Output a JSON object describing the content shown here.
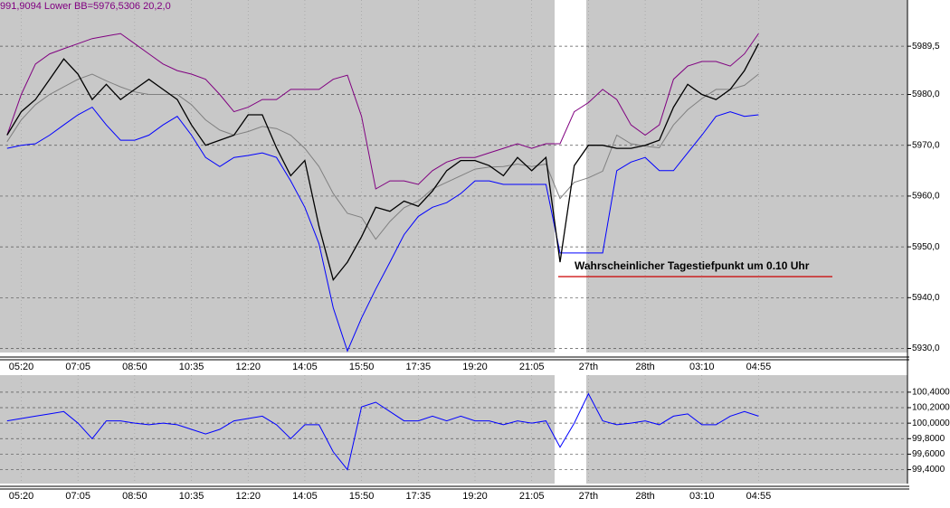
{
  "chart_data": [
    {
      "type": "line",
      "title": "991,9094 Lower BB=5976,5306 20,2,0",
      "annotation": "Wahrscheinlicher Tagestiefpunkt um 0.10 Uhr",
      "categories": [
        null,
        "05:20",
        null,
        null,
        null,
        "07:05",
        null,
        null,
        null,
        "08:50",
        null,
        null,
        null,
        "10:35",
        null,
        null,
        null,
        "12:20",
        null,
        null,
        null,
        "14:05",
        null,
        null,
        null,
        "15:50",
        null,
        null,
        null,
        "17:35",
        null,
        null,
        null,
        "19:20",
        null,
        null,
        null,
        "21:05",
        null,
        null,
        null,
        "27th",
        null,
        null,
        null,
        "28th",
        null,
        null,
        null,
        "03:10",
        null,
        null,
        null,
        "04:55",
        null,
        null,
        null,
        null,
        null,
        null,
        null,
        null,
        null,
        null
      ],
      "ylim": [
        5929.2,
        5998.6
      ],
      "yticks": [
        {
          "value": 5930,
          "label": "5930,0"
        },
        {
          "value": 5940,
          "label": "5940,0"
        },
        {
          "value": 5950,
          "label": "5950,0"
        },
        {
          "value": 5960,
          "label": "5960,0"
        },
        {
          "value": 5970,
          "label": "5970,0"
        },
        {
          "value": 5980,
          "label": "5980,0"
        },
        {
          "value": 5989.5,
          "label": "5989,5"
        }
      ],
      "grid": true,
      "series": [
        {
          "color": "#800080",
          "values": [
            5972,
            5980,
            5986,
            5988,
            5989,
            5990,
            5991,
            5991.5,
            5992,
            5990,
            5988,
            5986,
            5984.7,
            5984,
            5983,
            5980,
            5976.6,
            5977.5,
            5979,
            5979,
            5981,
            5981,
            5981,
            5983,
            5983.8,
            5975.7,
            5961.4,
            5963,
            5963,
            5962.3,
            5965,
            5966.7,
            5967.6,
            5967.6,
            5968.5,
            5969.4,
            5970.3,
            5969.4,
            5970.3,
            5970.3,
            5976.6,
            5978.4,
            5981,
            5979,
            5974,
            5972,
            5974,
            5983,
            5985.6,
            5986.5,
            5986.5,
            5985.6,
            5988,
            5992,
            null,
            null,
            null,
            null,
            null,
            null,
            null,
            null,
            null,
            null
          ]
        },
        {
          "color": "#808080",
          "values": [
            5970.7,
            5975,
            5978,
            5980,
            5981.5,
            5983,
            5984,
            5982.7,
            5981.5,
            5980.5,
            5980,
            5980,
            5980,
            5978,
            5975,
            5973,
            5972,
            5972.7,
            5973.7,
            5973.3,
            5972,
            5969.4,
            5965.8,
            5960.5,
            5956.6,
            5955.8,
            5951.5,
            5955,
            5957.7,
            5959,
            5961.4,
            5962.7,
            5964,
            5965.3,
            5965.7,
            5965.8,
            5966.3,
            5965.8,
            5966.3,
            5959.5,
            5962.7,
            5963.6,
            5964.9,
            5972,
            5970.3,
            5969.8,
            5969.5,
            5974,
            5977,
            5979.2,
            5981,
            5981,
            5981.8,
            5984,
            null,
            null,
            null,
            null,
            null,
            null,
            null,
            null,
            null,
            null
          ]
        },
        {
          "name": "Lower BB",
          "color": "#0000ff",
          "values": [
            5969.4,
            5970,
            5970.3,
            5972,
            5974,
            5976,
            5977.5,
            5974,
            5971,
            5971,
            5972,
            5974,
            5975.7,
            5972,
            5967.6,
            5965.8,
            5967.6,
            5968,
            5968.5,
            5967.6,
            5963,
            5957.8,
            5950.6,
            5938,
            5929.5,
            5936,
            5941.7,
            5947,
            5952.4,
            5956,
            5957.8,
            5958.7,
            5960.5,
            5963,
            5963,
            5962.3,
            5962.3,
            5962.3,
            5962.3,
            5948.8,
            5948.8,
            5948.8,
            5948.8,
            5965,
            5966.7,
            5967.6,
            5965,
            5965,
            5968.5,
            5972,
            5975.7,
            5976.6,
            5975.7,
            5976,
            null,
            null,
            null,
            null,
            null,
            null,
            null,
            null,
            null,
            null
          ]
        },
        {
          "color": "#000000",
          "values": [
            5972,
            5976.6,
            5979,
            5983,
            5987,
            5984,
            5979,
            5982,
            5979,
            5981,
            5983,
            5981,
            5979,
            5974,
            5970,
            5971,
            5972,
            5976,
            5976,
            5969.5,
            5964,
            5967,
            5954,
            5943.5,
            5947,
            5952,
            5957.8,
            5957,
            5959,
            5958,
            5961,
            5965,
            5967,
            5967,
            5966,
            5964,
            5967.6,
            5965,
            5967.6,
            5947,
            5966,
            5970,
            5970,
            5969.4,
            5969.4,
            5970,
            5971,
            5977.5,
            5982,
            5980,
            5979,
            5981,
            5984.7,
            5990,
            null,
            null,
            null,
            null,
            null,
            null,
            null,
            null,
            null,
            null
          ]
        }
      ]
    },
    {
      "type": "line",
      "categories": [
        null,
        "05:20",
        null,
        null,
        null,
        "07:05",
        null,
        null,
        null,
        "08:50",
        null,
        null,
        null,
        "10:35",
        null,
        null,
        null,
        "12:20",
        null,
        null,
        null,
        "14:05",
        null,
        null,
        null,
        "15:50",
        null,
        null,
        null,
        "17:35",
        null,
        null,
        null,
        "19:20",
        null,
        null,
        null,
        "21:05",
        null,
        null,
        null,
        "27th",
        null,
        null,
        null,
        "28th",
        null,
        null,
        null,
        "03:10",
        null,
        null,
        null,
        "04:55",
        null,
        null,
        null,
        null,
        null,
        null,
        null,
        null,
        null,
        null
      ],
      "ylim": [
        99.22,
        100.62
      ],
      "yticks": [
        {
          "value": 99.4,
          "label": "99,4000"
        },
        {
          "value": 99.6,
          "label": "99,6000"
        },
        {
          "value": 99.8,
          "label": "99,8000"
        },
        {
          "value": 100,
          "label": "100,0000"
        },
        {
          "value": 100.2,
          "label": "100,2000"
        },
        {
          "value": 100.4,
          "label": "100,4000"
        }
      ],
      "grid": true,
      "series": [
        {
          "color": "#0000ff",
          "values": [
            100.03,
            100.06,
            100.09,
            100.12,
            100.15,
            100.0,
            99.8,
            100.03,
            100.03,
            100.0,
            99.98,
            100.0,
            99.98,
            99.92,
            99.86,
            99.92,
            100.03,
            100.06,
            100.09,
            99.98,
            99.8,
            99.98,
            99.98,
            99.63,
            99.4,
            100.21,
            100.27,
            100.15,
            100.03,
            100.03,
            100.09,
            100.03,
            100.09,
            100.03,
            100.03,
            99.98,
            100.03,
            100.0,
            100.03,
            99.69,
            100.0,
            100.38,
            100.03,
            99.98,
            100.0,
            100.03,
            99.98,
            100.09,
            100.12,
            99.98,
            99.98,
            100.09,
            100.15,
            100.09,
            null,
            null,
            null,
            null,
            null,
            null,
            null,
            null,
            null,
            null
          ]
        }
      ]
    }
  ]
}
